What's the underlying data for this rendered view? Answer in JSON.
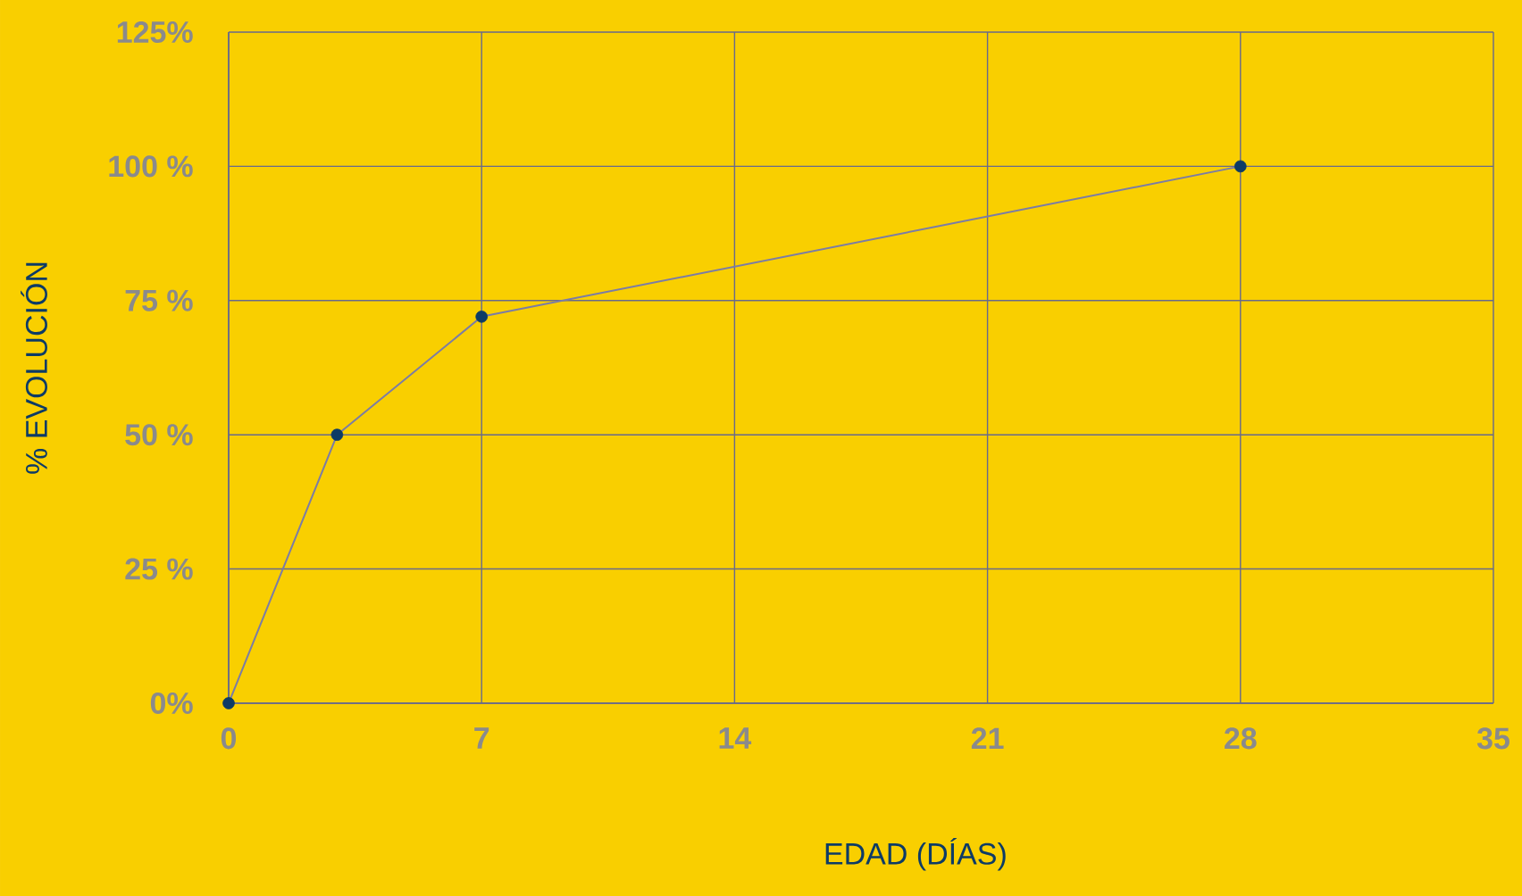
{
  "chart_data": {
    "type": "line",
    "xlabel": "EDAD (DÍAS)",
    "ylabel": "% EVOLUCIÓN",
    "x": [
      0,
      3,
      7,
      28
    ],
    "series": [
      {
        "color": "#7b7ca6",
        "colors": [
          "#0d3b66",
          "#0d3b66",
          "#0d3b66",
          "#0d3b66"
        ],
        "values": [
          0,
          50,
          72,
          100
        ]
      }
    ],
    "xlim": [
      0,
      35
    ],
    "xticks": [
      0,
      7,
      14,
      21,
      28,
      35
    ],
    "ylim": [
      0,
      125
    ],
    "yticks": [
      {
        "value": 0,
        "label": "0%"
      },
      {
        "value": 25,
        "label": "25 %"
      },
      {
        "value": 50,
        "label": "50 %"
      },
      {
        "value": 75,
        "label": "75 %"
      },
      {
        "value": 100,
        "label": "100 %"
      },
      {
        "value": 125,
        "label": "125%"
      }
    ],
    "grid": true,
    "marker": "circle",
    "line_style": "solid"
  }
}
